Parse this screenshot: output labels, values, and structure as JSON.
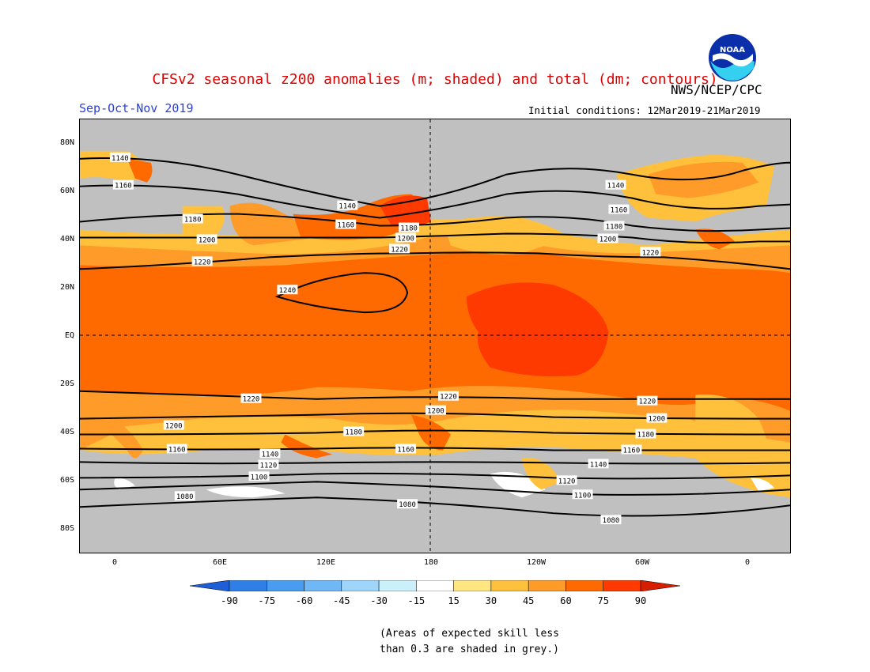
{
  "header": {
    "title": "CFSv2 seasonal z200 anomalies (m; shaded) and total (dm; contours)",
    "org": "NWS/NCEP/CPC",
    "season": "Sep-Oct-Nov 2019",
    "initial_conditions": "Initial conditions: 12Mar2019-21Mar2019",
    "logo_text": "NOAA"
  },
  "map": {
    "lat_labels": [
      "80N",
      "60N",
      "40N",
      "20N",
      "EQ",
      "20S",
      "40S",
      "60S",
      "80S"
    ],
    "lon_labels": [
      "0",
      "60E",
      "120E",
      "180",
      "120W",
      "60W",
      "0"
    ],
    "contours": [
      {
        "value": "1240"
      },
      {
        "value": "1220"
      },
      {
        "value": "1200"
      },
      {
        "value": "1180"
      },
      {
        "value": "1160"
      },
      {
        "value": "1140"
      },
      {
        "value": "1120"
      },
      {
        "value": "1100"
      },
      {
        "value": "1080"
      }
    ],
    "colors": {
      "grey": "#c0c0c0",
      "o15": "#ffe680",
      "o30": "#ffc13c",
      "o45": "#ff9b28",
      "o60": "#ff6a00",
      "o75": "#ff3a00",
      "white": "#ffffff"
    }
  },
  "colorbar": {
    "labels": [
      "-90",
      "-75",
      "-60",
      "-45",
      "-30",
      "-15",
      "15",
      "30",
      "45",
      "60",
      "75",
      "90"
    ],
    "colors": [
      "#1e5fd8",
      "#2f7fe6",
      "#4a9cf0",
      "#6fb7f5",
      "#9fd5fa",
      "#c9f0fb",
      "#ffffff",
      "#ffe680",
      "#ffc13c",
      "#ff9b28",
      "#ff6a00",
      "#ff3a00",
      "#d81e00"
    ]
  },
  "note": {
    "line1": "(Areas of expected skill less",
    "line2": "than 0.3 are shaded in grey.)"
  }
}
